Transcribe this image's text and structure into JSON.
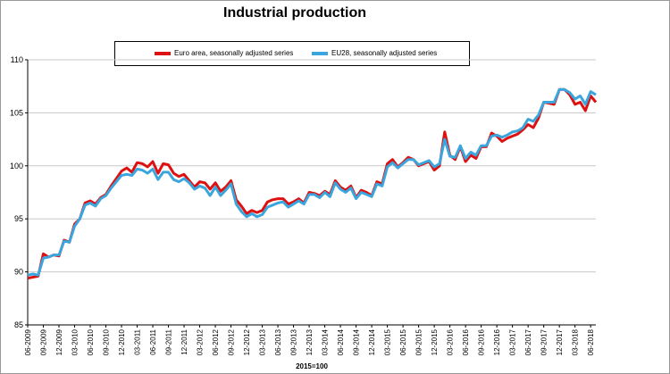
{
  "chart_data": {
    "type": "line",
    "title": "Industrial production",
    "xlabel": "2015=100",
    "ylabel": "",
    "ylim": [
      85,
      110
    ],
    "yticks": [
      "85",
      "90",
      "95",
      "100",
      "105",
      "110"
    ],
    "grid": true,
    "legend_position": "top",
    "x_start": "06-2009",
    "tick_labels": [
      "06-2009",
      "09-2009",
      "12-2009",
      "03-2010",
      "06-2010",
      "09-2010",
      "12-2010",
      "03-2011",
      "06-2011",
      "09-2011",
      "12-2011",
      "03-2012",
      "06-2012",
      "09-2012",
      "12-2012",
      "03-2013",
      "06-2013",
      "09-2013",
      "12-2013",
      "03-2014",
      "06-2014",
      "09-2014",
      "12-2014",
      "03-2015",
      "06-2015",
      "09-2015",
      "12-2015",
      "03-2016",
      "06-2016",
      "09-2016",
      "12-2016",
      "03-2017",
      "06-2017",
      "09-2017",
      "12-2017",
      "03-2018",
      "06-2018"
    ],
    "series": [
      {
        "name": "Euro area, seasonally adjusted series",
        "color": "#dd1111",
        "values": [
          89.4,
          89.5,
          89.6,
          91.7,
          91.4,
          91.6,
          91.5,
          93.0,
          92.8,
          94.5,
          95.0,
          96.5,
          96.7,
          96.4,
          97.0,
          97.3,
          98.1,
          98.8,
          99.5,
          99.8,
          99.4,
          100.3,
          100.2,
          99.9,
          100.4,
          99.3,
          100.2,
          100.1,
          99.3,
          99.0,
          99.2,
          98.6,
          98.0,
          98.5,
          98.4,
          97.8,
          98.4,
          97.6,
          98.0,
          98.6,
          96.8,
          96.2,
          95.5,
          95.8,
          95.6,
          95.8,
          96.6,
          96.8,
          96.9,
          96.9,
          96.4,
          96.6,
          96.9,
          96.5,
          97.5,
          97.4,
          97.2,
          97.6,
          97.3,
          98.6,
          98.0,
          97.7,
          98.1,
          97.0,
          97.7,
          97.5,
          97.2,
          98.5,
          98.3,
          100.2,
          100.6,
          99.9,
          100.3,
          100.8,
          100.6,
          100.0,
          100.2,
          100.4,
          99.6,
          100.0,
          103.2,
          101.0,
          100.6,
          101.8,
          100.4,
          101.0,
          100.7,
          101.8,
          101.8,
          103.1,
          102.8,
          102.3,
          102.6,
          102.8,
          103.0,
          103.4,
          103.9,
          103.6,
          104.5,
          106.0,
          105.9,
          105.8,
          107.2,
          107.2,
          106.7,
          105.8,
          106.0,
          105.2,
          106.6,
          106.0
        ]
      },
      {
        "name": "EU28, seasonally adjusted series",
        "color": "#3aa6dd",
        "values": [
          89.7,
          89.8,
          89.7,
          91.3,
          91.4,
          91.6,
          91.6,
          92.9,
          92.8,
          94.3,
          95.0,
          96.3,
          96.5,
          96.2,
          96.9,
          97.2,
          97.9,
          98.5,
          99.1,
          99.2,
          99.1,
          99.7,
          99.6,
          99.3,
          99.7,
          98.7,
          99.4,
          99.4,
          98.7,
          98.5,
          98.8,
          98.4,
          97.8,
          98.1,
          97.9,
          97.2,
          98.0,
          97.2,
          97.7,
          98.3,
          96.4,
          95.7,
          95.2,
          95.5,
          95.2,
          95.4,
          96.1,
          96.3,
          96.5,
          96.6,
          96.1,
          96.4,
          96.7,
          96.4,
          97.3,
          97.3,
          97.0,
          97.5,
          97.1,
          98.4,
          97.8,
          97.5,
          97.9,
          96.9,
          97.5,
          97.3,
          97.1,
          98.3,
          98.1,
          99.9,
          100.3,
          99.8,
          100.2,
          100.6,
          100.6,
          100.1,
          100.3,
          100.5,
          99.9,
          100.2,
          102.5,
          100.9,
          100.8,
          101.9,
          100.7,
          101.3,
          101.0,
          101.9,
          101.9,
          102.8,
          102.9,
          102.7,
          102.9,
          103.2,
          103.3,
          103.6,
          104.4,
          104.2,
          104.8,
          106.0,
          106.0,
          106.0,
          107.2,
          107.2,
          106.9,
          106.3,
          106.6,
          105.8,
          107.0,
          106.7
        ]
      }
    ]
  }
}
